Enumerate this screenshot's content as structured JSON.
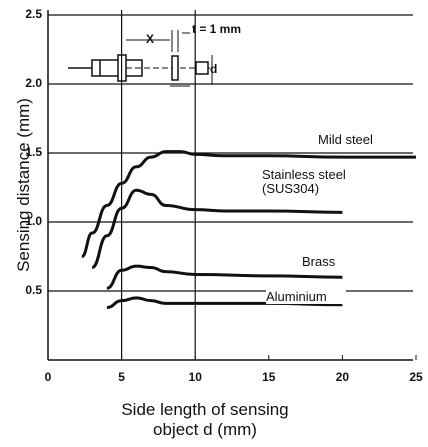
{
  "chart_data": {
    "type": "line",
    "xlabel": "Side length of sensing object d (mm)",
    "ylabel": "Sensing distance (mm)",
    "annotations": [
      "t = 1 mm",
      "X",
      "d"
    ],
    "xlim": [
      0,
      25
    ],
    "xticks": [
      0,
      5,
      10,
      15,
      20,
      25
    ],
    "ylim": [
      0,
      2.5
    ],
    "yticks": [
      0.5,
      {
        "value": 1,
        "label": "1.0"
      },
      1.5,
      {
        "value": 2,
        "label": "2.0"
      },
      2.5
    ],
    "grid": true,
    "xgrid": [
      5,
      10
    ],
    "series": [
      {
        "name": "Mild steel",
        "color": "#111111",
        "x": [
          2.3,
          3,
          4,
          5,
          6,
          7,
          8,
          9,
          10,
          12,
          15,
          20,
          25
        ],
        "values": [
          0.75,
          0.92,
          1.12,
          1.28,
          1.4,
          1.47,
          1.51,
          1.51,
          1.49,
          1.48,
          1.48,
          1.47,
          1.47
        ]
      },
      {
        "name": "Stainless steel (SUS304)",
        "color": "#111111",
        "x": [
          3,
          4,
          5,
          6,
          7,
          8,
          10,
          12,
          15,
          20
        ],
        "values": [
          0.67,
          0.9,
          1.1,
          1.23,
          1.2,
          1.12,
          1.09,
          1.08,
          1.08,
          1.07
        ]
      },
      {
        "name": "Brass",
        "color": "#111111",
        "x": [
          4,
          5,
          6,
          7,
          8,
          10,
          15,
          20
        ],
        "values": [
          0.52,
          0.65,
          0.68,
          0.67,
          0.64,
          0.62,
          0.61,
          0.6
        ]
      },
      {
        "name": "Aluminium",
        "color": "#111111",
        "x": [
          4,
          5,
          6,
          7,
          8,
          10,
          15,
          20
        ],
        "values": [
          0.38,
          0.43,
          0.45,
          0.43,
          0.41,
          0.41,
          0.41,
          0.4
        ]
      }
    ]
  }
}
